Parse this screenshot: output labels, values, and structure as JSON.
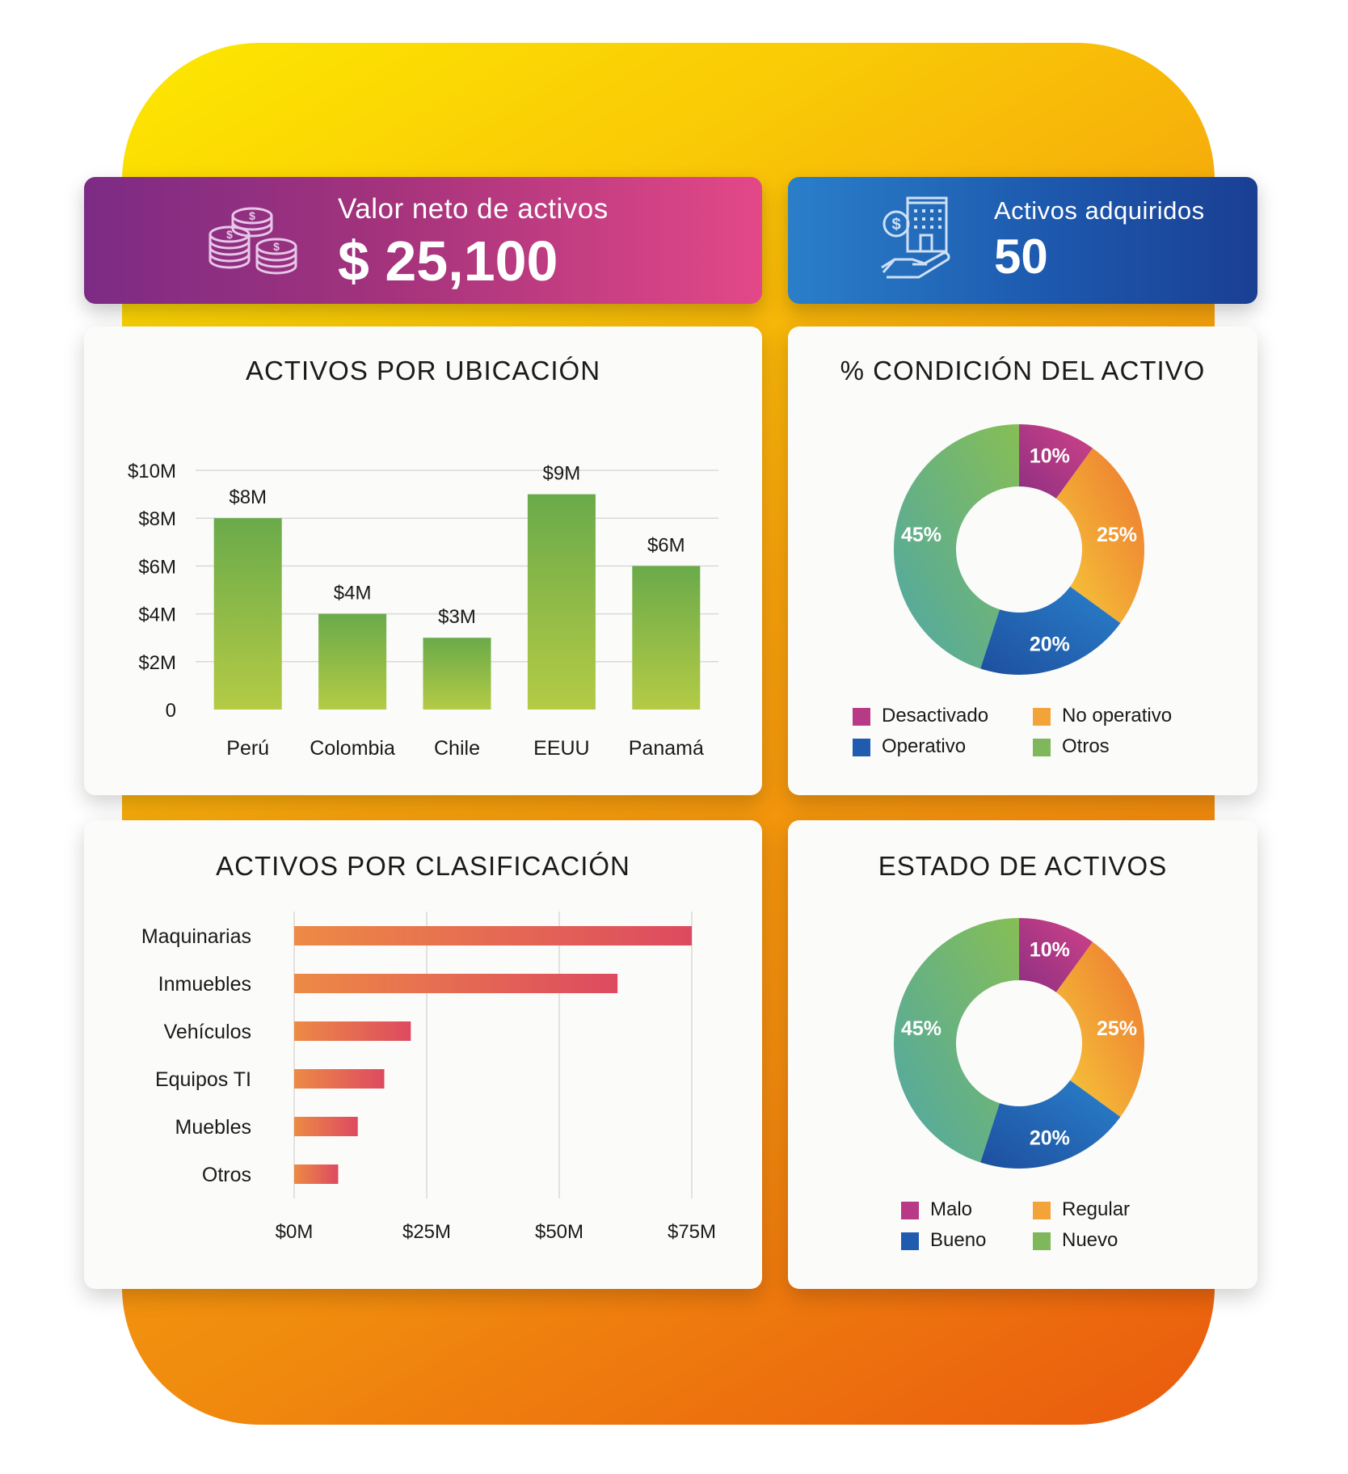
{
  "kpis": {
    "net_value": {
      "label": "Valor neto de activos",
      "value": "$ 25,100",
      "icon": "coins-icon"
    },
    "acquired": {
      "label": "Activos adquiridos",
      "value": "50",
      "icon": "building-hand-icon"
    }
  },
  "colors": {
    "bars_location": [
      "#6aaa4a",
      "#b4cb45"
    ],
    "bars_class": [
      "#ed8a45",
      "#dd4a60"
    ],
    "donut": [
      "#b03c85",
      "#f5b13a",
      "#1f5cb0",
      "#7fb85b"
    ]
  },
  "chart_data": [
    {
      "type": "bar",
      "title": "ACTIVOS POR UBICACIÓN",
      "categories": [
        "Perú",
        "Colombia",
        "Chile",
        "EEUU",
        "Panamá"
      ],
      "values": [
        8,
        4,
        3,
        9,
        6
      ],
      "data_labels": [
        "$8M",
        "$4M",
        "$3M",
        "$9M",
        "$6M"
      ],
      "ylim": [
        0,
        10
      ],
      "yticks": [
        0,
        2,
        4,
        6,
        8,
        10
      ],
      "ytick_labels": [
        "0",
        "$2M",
        "$4M",
        "$6M",
        "$8M",
        "$10M"
      ],
      "grid": true
    },
    {
      "type": "pie",
      "title": "% CONDICIÓN DEL ACTIVO",
      "categories": [
        "Desactivado",
        "No operativo",
        "Operativo",
        "Otros"
      ],
      "values": [
        10,
        25,
        20,
        45
      ],
      "data_labels": [
        "10%",
        "25%",
        "20%",
        "45%"
      ],
      "legend_position": "bottom"
    },
    {
      "type": "bar",
      "orientation": "horizontal",
      "title": "ACTIVOS POR CLASIFICACIÓN",
      "categories": [
        "Maquinarias",
        "Inmuebles",
        "Vehículos",
        "Equipos TI",
        "Muebles",
        "Otros"
      ],
      "values": [
        75,
        61,
        22,
        17,
        12,
        8.3
      ],
      "xlim": [
        0,
        75
      ],
      "xticks": [
        0,
        25,
        50,
        75
      ],
      "xtick_labels": [
        "$0M",
        "$25M",
        "$50M",
        "$75M"
      ],
      "grid": true
    },
    {
      "type": "pie",
      "title": "ESTADO DE ACTIVOS",
      "categories": [
        "Malo",
        "Regular",
        "Bueno",
        "Nuevo"
      ],
      "values": [
        10,
        25,
        20,
        45
      ],
      "data_labels": [
        "10%",
        "25%",
        "20%",
        "45%"
      ],
      "legend_position": "bottom"
    }
  ]
}
